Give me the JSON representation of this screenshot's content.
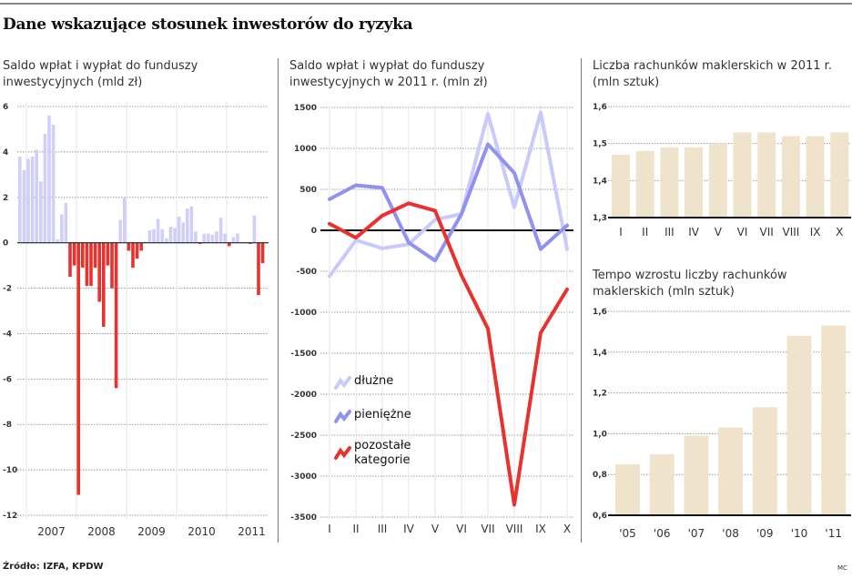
{
  "title": "Dane wskazujące stosunek inwestorów do ryzyka",
  "source": "Źródło: IZFA, KPDW",
  "credit": "MC",
  "colors": {
    "positive_bar": "#cfcffa",
    "negative_bar": "#e8322e",
    "debt": "#c9c9fb",
    "money": "#9191f0",
    "other": "#e8322e",
    "beige_bar": "#efe3cc"
  },
  "chart_data": [
    {
      "type": "bar",
      "title_line1": "Saldo wpłat i wypłat do funduszy",
      "title_line2": "inwestycyjnych (mld zł)",
      "ylim": [
        -12,
        6
      ],
      "yticks": [
        "6",
        "4",
        "2",
        "0",
        "-2",
        "-4",
        "-6",
        "-8",
        "-10",
        "-12"
      ],
      "ytick_values": [
        6,
        4,
        2,
        0,
        -2,
        -4,
        -6,
        -8,
        -10,
        -12
      ],
      "xtick_labels": [
        "2007",
        "2008",
        "2009",
        "2010",
        "2011"
      ],
      "grid": true,
      "values": [
        3.8,
        3.2,
        3.7,
        3.8,
        4.1,
        2.7,
        4.8,
        5.6,
        5.2,
        0.15,
        1.25,
        1.75,
        -1.5,
        -1.0,
        -11.1,
        -1.1,
        -1.9,
        -1.9,
        -1.1,
        -2.6,
        -3.7,
        -1.0,
        -2.0,
        -6.4,
        1.0,
        2.0,
        -0.35,
        -1.1,
        -0.7,
        -0.35,
        0.05,
        0.55,
        0.6,
        1.05,
        0.6,
        0.2,
        0.7,
        0.65,
        1.15,
        0.9,
        1.5,
        1.6,
        0.5,
        -0.05,
        0.4,
        0.4,
        0.35,
        0.5,
        1.1,
        0.4,
        -0.15,
        0.25,
        0.4,
        0.0,
        0.0,
        -0.05,
        1.2,
        -2.3,
        -0.9
      ]
    },
    {
      "type": "line",
      "title_line1": "Saldo wpłat i wypłat do funduszy",
      "title_line2": "inwestycyjnych w 2011 r. (mln zł)",
      "ylim": [
        -3500,
        1500
      ],
      "yticks": [
        "1500",
        "1000",
        "500",
        "0",
        "-500",
        "-1000",
        "-1500",
        "-2000",
        "-2500",
        "-3000",
        "-3500"
      ],
      "ytick_values": [
        1500,
        1000,
        500,
        0,
        -500,
        -1000,
        -1500,
        -2000,
        -2500,
        -3000,
        -3500
      ],
      "categories": [
        "I",
        "II",
        "III",
        "IV",
        "V",
        "VI",
        "VII",
        "VIII",
        "IX",
        "X"
      ],
      "grid": true,
      "legend_placement": "left",
      "series": [
        {
          "name": "dłużne",
          "key": "debt",
          "values": [
            -560,
            -120,
            -220,
            -170,
            130,
            200,
            1420,
            280,
            1440,
            -230
          ]
        },
        {
          "name": "pieniężne",
          "key": "money",
          "values": [
            380,
            550,
            520,
            -150,
            -370,
            200,
            1050,
            700,
            -230,
            60
          ]
        },
        {
          "name": "pozostałe kategorie",
          "name_line1": "pozostałe",
          "name_line2": "kategorie",
          "key": "other",
          "values": [
            80,
            -90,
            180,
            330,
            240,
            -550,
            -1200,
            -3350,
            -1250,
            -720
          ]
        }
      ]
    },
    {
      "type": "bar",
      "title_line1": "Liczba rachunków maklerskich w 2011 r.",
      "title_line2": "(mln sztuk)",
      "ylim": [
        1.3,
        1.6
      ],
      "yticks": [
        "1,6",
        "1,5",
        "1,4",
        "1,3"
      ],
      "ytick_values": [
        1.6,
        1.5,
        1.4,
        1.3
      ],
      "categories": [
        "I",
        "II",
        "III",
        "IV",
        "V",
        "VI",
        "VII",
        "VIII",
        "IX",
        "X"
      ],
      "grid": true,
      "values": [
        1.47,
        1.48,
        1.49,
        1.49,
        1.5,
        1.53,
        1.53,
        1.52,
        1.52,
        1.53
      ]
    },
    {
      "type": "bar",
      "title_line1": "Tempo wzrostu liczby rachunków",
      "title_line2": "maklerskich (mln sztuk)",
      "ylim": [
        0.6,
        1.6
      ],
      "yticks": [
        "1,6",
        "1,4",
        "1,2",
        "1,0",
        "0,8",
        "0,6"
      ],
      "ytick_values": [
        1.6,
        1.4,
        1.2,
        1.0,
        0.8,
        0.6
      ],
      "categories": [
        "'05",
        "'06",
        "'07",
        "'08",
        "'09",
        "'10",
        "'11"
      ],
      "grid": true,
      "values": [
        0.85,
        0.9,
        0.99,
        1.03,
        1.13,
        1.48,
        1.53
      ]
    }
  ]
}
